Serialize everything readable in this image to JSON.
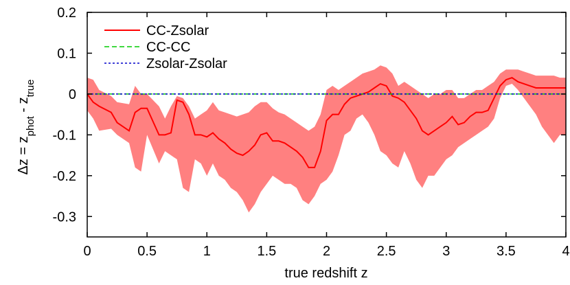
{
  "chart_data": {
    "type": "line",
    "xlabel": "true redshift z",
    "ylabel_parts": [
      "Δz = z",
      "phot",
      " - z",
      "true"
    ],
    "xlim": [
      0,
      4
    ],
    "ylim": [
      -0.35,
      0.2
    ],
    "x_ticks": [
      {
        "value": 0,
        "label": "0"
      },
      {
        "value": 0.5,
        "label": "0.5"
      },
      {
        "value": 1,
        "label": "1"
      },
      {
        "value": 1.5,
        "label": "1.5"
      },
      {
        "value": 2,
        "label": "2"
      },
      {
        "value": 2.5,
        "label": "2.5"
      },
      {
        "value": 3,
        "label": "3"
      },
      {
        "value": 3.5,
        "label": "3.5"
      },
      {
        "value": 4,
        "label": "4"
      }
    ],
    "y_ticks": [
      {
        "value": 0.2,
        "label": "0.2"
      },
      {
        "value": 0.1,
        "label": "0.1"
      },
      {
        "value": 0,
        "label": "0"
      },
      {
        "value": -0.1,
        "label": "-0.1"
      },
      {
        "value": -0.2,
        "label": "-0.2"
      },
      {
        "value": -0.3,
        "label": "-0.3"
      }
    ],
    "grid": false,
    "legend_position": "top-left",
    "series": [
      {
        "name": "CC-Zsolar",
        "color": "#ff0000",
        "dash": "solid",
        "band_color": "#ff8080",
        "x": [
          0.0,
          0.05,
          0.1,
          0.2,
          0.25,
          0.35,
          0.4,
          0.45,
          0.5,
          0.6,
          0.65,
          0.7,
          0.75,
          0.8,
          0.85,
          0.9,
          0.95,
          1.0,
          1.05,
          1.1,
          1.15,
          1.2,
          1.25,
          1.3,
          1.35,
          1.4,
          1.45,
          1.5,
          1.55,
          1.6,
          1.65,
          1.7,
          1.75,
          1.8,
          1.85,
          1.9,
          1.95,
          2.0,
          2.05,
          2.1,
          2.15,
          2.2,
          2.25,
          2.3,
          2.35,
          2.4,
          2.45,
          2.5,
          2.55,
          2.6,
          2.65,
          2.7,
          2.75,
          2.8,
          2.85,
          2.9,
          2.95,
          3.0,
          3.05,
          3.1,
          3.15,
          3.2,
          3.25,
          3.3,
          3.35,
          3.4,
          3.45,
          3.5,
          3.55,
          3.6,
          3.65,
          3.7,
          3.75,
          3.8,
          3.85,
          3.9,
          3.95,
          4.0
        ],
        "values": [
          0.0,
          -0.02,
          -0.03,
          -0.045,
          -0.07,
          -0.09,
          -0.045,
          -0.035,
          -0.035,
          -0.1,
          -0.1,
          -0.095,
          -0.015,
          -0.02,
          -0.05,
          -0.1,
          -0.1,
          -0.105,
          -0.095,
          -0.11,
          -0.12,
          -0.135,
          -0.145,
          -0.15,
          -0.14,
          -0.125,
          -0.1,
          -0.095,
          -0.115,
          -0.115,
          -0.12,
          -0.13,
          -0.14,
          -0.155,
          -0.18,
          -0.18,
          -0.14,
          -0.065,
          -0.05,
          -0.05,
          -0.025,
          -0.01,
          -0.005,
          0.0,
          0.005,
          0.015,
          0.025,
          0.02,
          -0.005,
          -0.01,
          -0.02,
          -0.04,
          -0.06,
          -0.09,
          -0.1,
          -0.09,
          -0.08,
          -0.07,
          -0.055,
          -0.075,
          -0.07,
          -0.055,
          -0.045,
          -0.045,
          -0.04,
          -0.01,
          0.02,
          0.035,
          0.04,
          0.03,
          0.025,
          0.02,
          0.015,
          0.015,
          0.015,
          0.015,
          0.015,
          0.015
        ],
        "upper": [
          0.04,
          0.035,
          0.01,
          -0.005,
          -0.02,
          -0.025,
          0.02,
          0.0,
          0.0,
          -0.03,
          -0.06,
          -0.03,
          -0.005,
          -0.01,
          -0.03,
          -0.06,
          -0.05,
          -0.04,
          -0.02,
          -0.04,
          -0.045,
          -0.05,
          -0.055,
          -0.05,
          -0.045,
          -0.03,
          -0.02,
          -0.02,
          -0.035,
          -0.045,
          -0.05,
          -0.06,
          -0.07,
          -0.08,
          -0.09,
          -0.08,
          -0.05,
          0.01,
          0.02,
          0.01,
          0.02,
          0.03,
          0.04,
          0.05,
          0.055,
          0.06,
          0.07,
          0.065,
          0.05,
          0.02,
          0.03,
          0.02,
          0.01,
          0.0,
          -0.01,
          0.0,
          0.0,
          0.01,
          0.01,
          -0.01,
          -0.01,
          0.0,
          0.01,
          0.01,
          0.02,
          0.03,
          0.05,
          0.06,
          0.06,
          0.06,
          0.055,
          0.05,
          0.045,
          0.045,
          0.045,
          0.045,
          0.04,
          0.04
        ],
        "lower": [
          -0.04,
          -0.06,
          -0.09,
          -0.085,
          -0.1,
          -0.12,
          -0.18,
          -0.19,
          -0.1,
          -0.17,
          -0.14,
          -0.15,
          -0.16,
          -0.23,
          -0.24,
          -0.16,
          -0.17,
          -0.2,
          -0.17,
          -0.2,
          -0.21,
          -0.23,
          -0.24,
          -0.26,
          -0.29,
          -0.27,
          -0.24,
          -0.22,
          -0.2,
          -0.21,
          -0.22,
          -0.22,
          -0.23,
          -0.26,
          -0.27,
          -0.25,
          -0.22,
          -0.21,
          -0.19,
          -0.15,
          -0.1,
          -0.09,
          -0.06,
          -0.05,
          -0.07,
          -0.1,
          -0.14,
          -0.15,
          -0.17,
          -0.18,
          -0.14,
          -0.17,
          -0.21,
          -0.23,
          -0.2,
          -0.2,
          -0.18,
          -0.16,
          -0.15,
          -0.13,
          -0.12,
          -0.11,
          -0.1,
          -0.09,
          -0.08,
          -0.06,
          -0.01,
          0.02,
          0.025,
          0.01,
          -0.01,
          -0.03,
          -0.05,
          -0.08,
          -0.1,
          -0.12,
          -0.1,
          -0.1
        ]
      },
      {
        "name": "CC-CC",
        "color": "#00cc00",
        "dash": "dashed",
        "x": [
          0,
          4
        ],
        "values": [
          0,
          0
        ]
      },
      {
        "name": "Zsolar-Zsolar",
        "color": "#0000cc",
        "dash": "dotted",
        "x": [
          0,
          4
        ],
        "values": [
          0,
          0
        ]
      }
    ]
  }
}
